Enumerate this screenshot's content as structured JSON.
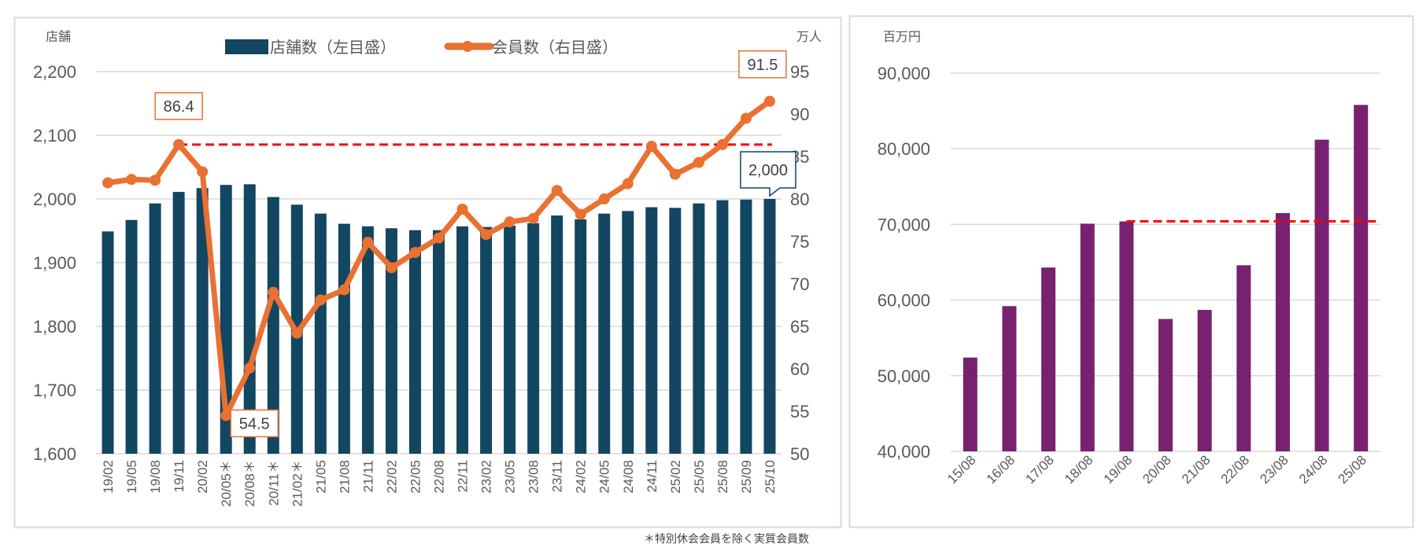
{
  "chart_data": [
    {
      "type": "bar+line",
      "left_unit": "店舗",
      "right_unit": "万人",
      "legend": [
        "店舗数（左目盛）",
        "会員数（右目盛）"
      ],
      "legend_placement": "top",
      "categories": [
        "19/02",
        "19/05",
        "19/08",
        "19/11",
        "20/02",
        "20/05＊",
        "20/08＊",
        "20/11＊",
        "21/02＊",
        "21/05",
        "21/08",
        "21/11",
        "22/02",
        "22/05",
        "22/08",
        "22/11",
        "23/02",
        "23/05",
        "23/08",
        "23/11",
        "24/02",
        "24/05",
        "24/08",
        "24/11",
        "25/02",
        "25/05",
        "25/08",
        "25/09",
        "25/10"
      ],
      "series": [
        {
          "name": "店舗数（左目盛）",
          "type": "bar",
          "axis": "left",
          "color": "#124661",
          "values": [
            1949,
            1967,
            1993,
            2011,
            2017,
            2022,
            2023,
            2003,
            1991,
            1977,
            1961,
            1957,
            1954,
            1951,
            1951,
            1957,
            1956,
            1958,
            1962,
            1974,
            1968,
            1977,
            1981,
            1987,
            1986,
            1993,
            1998,
            1999,
            2000
          ]
        },
        {
          "name": "会員数（右目盛）",
          "type": "line",
          "axis": "right",
          "color": "#E97132",
          "values": [
            81.9,
            82.3,
            82.2,
            86.4,
            83.2,
            54.5,
            60.1,
            69.0,
            64.2,
            68.1,
            69.3,
            74.9,
            71.9,
            73.7,
            75.4,
            78.8,
            75.8,
            77.3,
            77.7,
            81.0,
            78.2,
            80.0,
            81.8,
            86.2,
            82.9,
            84.3,
            86.4,
            89.5,
            91.5
          ]
        }
      ],
      "y_left": {
        "range": [
          1600,
          2200
        ],
        "ticks": [
          "1,600",
          "1,700",
          "1,800",
          "1,900",
          "2,000",
          "2,100",
          "2,200"
        ]
      },
      "y_right": {
        "range": [
          50,
          95
        ],
        "ticks": [
          "50",
          "55",
          "60",
          "65",
          "70",
          "75",
          "80",
          "85",
          "90",
          "95"
        ]
      },
      "reference_line": {
        "value": 86.4,
        "axis": "right",
        "color": "#FF0000",
        "style": "dashed"
      },
      "data_labels": [
        {
          "category": "19/11",
          "text": "86.4",
          "series": "会員数（右目盛）"
        },
        {
          "category": "20/05＊",
          "text": "54.5",
          "series": "会員数（右目盛）"
        },
        {
          "category": "25/10",
          "text": "91.5",
          "series": "会員数（右目盛）"
        },
        {
          "category": "25/10",
          "text": "2,000",
          "series": "店舗数（左目盛）"
        }
      ],
      "grid": true,
      "footnote": "＊特別休会会員を除く実質会員数"
    },
    {
      "type": "bar",
      "y_unit": "百万円",
      "categories": [
        "15/08",
        "16/08",
        "17/08",
        "18/08",
        "19/08",
        "20/08",
        "21/08",
        "22/08",
        "23/08",
        "24/08",
        "25/08"
      ],
      "values": [
        52400,
        59200,
        64300,
        70100,
        70400,
        57500,
        58700,
        64600,
        71500,
        81200,
        85800
      ],
      "color": "#782170",
      "ylim": [
        40000,
        90000
      ],
      "y_ticks": [
        "40,000",
        "50,000",
        "60,000",
        "70,000",
        "80,000",
        "90,000"
      ],
      "reference_line": {
        "value": 70400,
        "from_category": "19/08",
        "color": "#FF0000",
        "style": "dashed"
      },
      "grid": true
    }
  ]
}
